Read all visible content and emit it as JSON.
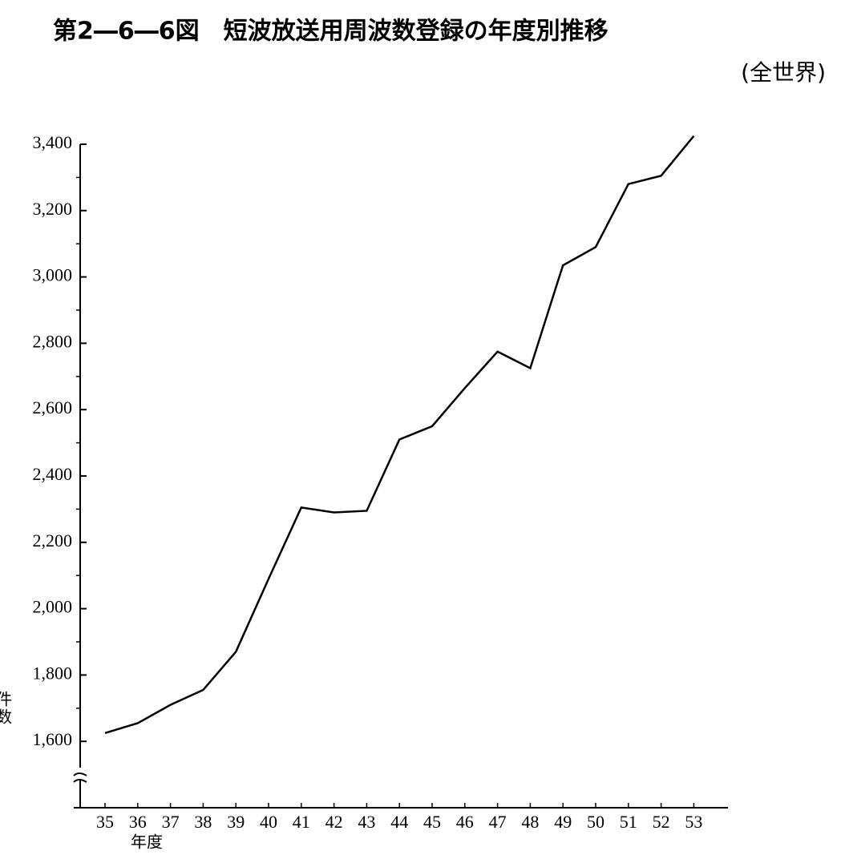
{
  "chart_data": {
    "type": "line",
    "title": "第2―6―6図　短波放送用周波数登録の年度別推移",
    "subtitle": "(全世界)",
    "y_label": "件数",
    "x_label": "年度",
    "categories": [
      "35",
      "36",
      "37",
      "38",
      "39",
      "40",
      "41",
      "42",
      "43",
      "44",
      "45",
      "46",
      "47",
      "48",
      "49",
      "50",
      "51",
      "52",
      "53"
    ],
    "values": [
      1625,
      1655,
      1710,
      1755,
      1870,
      2090,
      2305,
      2290,
      2295,
      2510,
      2550,
      2665,
      2775,
      2725,
      3035,
      3090,
      3280,
      3305,
      3425
    ],
    "color": "#000000",
    "ylim": [
      1400,
      3400
    ],
    "yticks": [
      {
        "value": 1600,
        "label": "1,600"
      },
      {
        "value": 1800,
        "label": "1,800"
      },
      {
        "value": 2000,
        "label": "2,000"
      },
      {
        "value": 2200,
        "label": "2,200"
      },
      {
        "value": 2400,
        "label": "2,400"
      },
      {
        "value": 2600,
        "label": "2,600"
      },
      {
        "value": 2800,
        "label": "2,800"
      },
      {
        "value": 3000,
        "label": "3,000"
      },
      {
        "value": 3200,
        "label": "3,200"
      },
      {
        "value": 3400,
        "label": "3,400"
      }
    ],
    "minor_yticks": [
      1700,
      1900,
      2100,
      2300,
      2500,
      2700,
      2900,
      3100,
      3300
    ]
  }
}
